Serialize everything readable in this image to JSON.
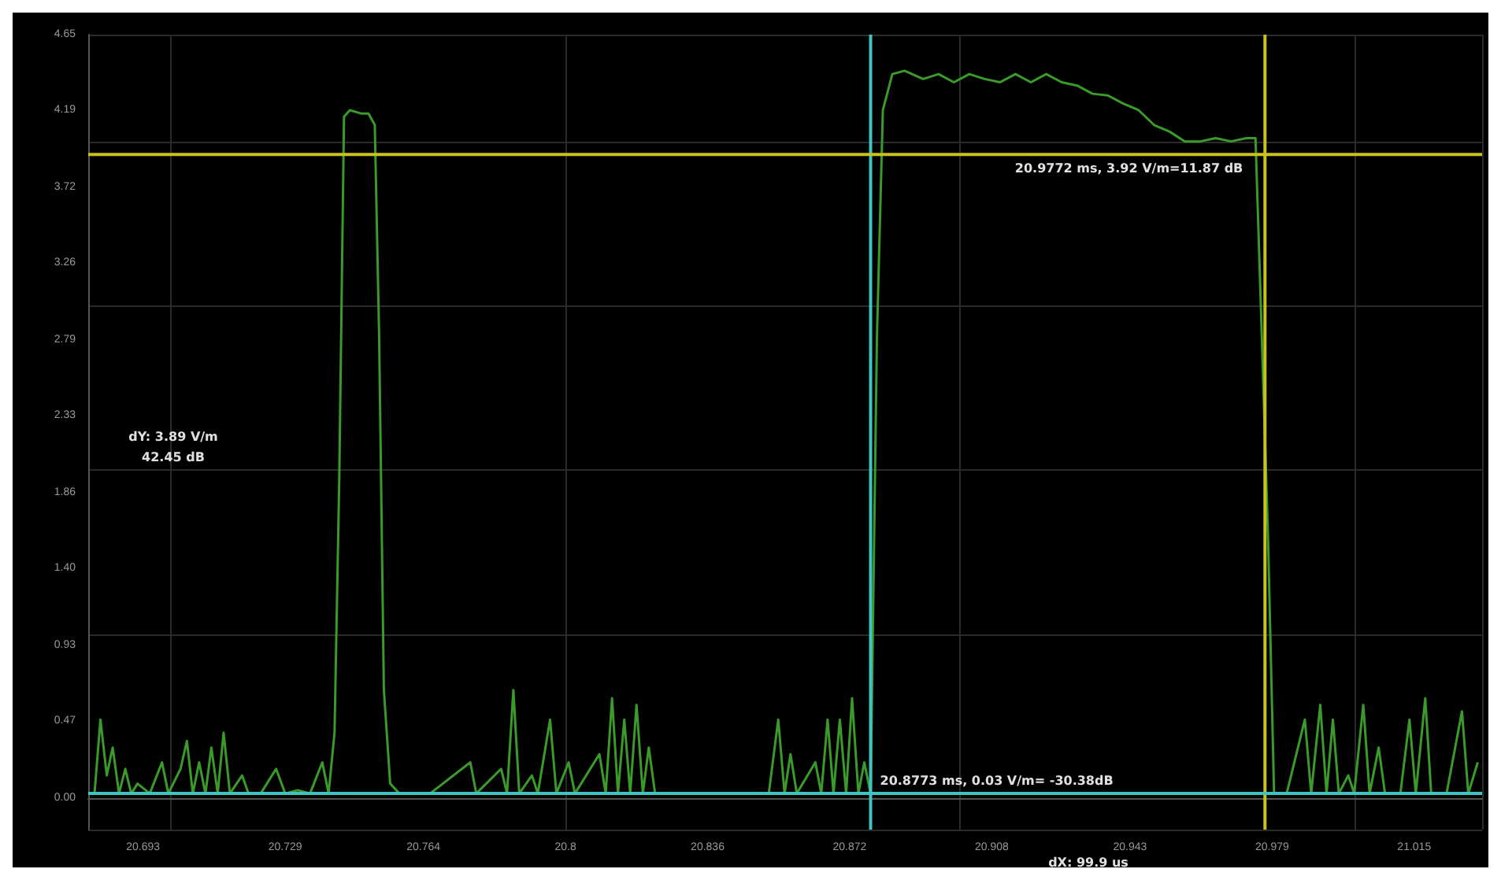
{
  "chart_data": {
    "type": "line",
    "x": [
      20.6807,
      20.6822,
      20.6838,
      20.6853,
      20.6869,
      20.6885,
      20.69,
      20.6916,
      20.6947,
      20.6978,
      20.6994,
      20.7025,
      20.7041,
      20.7056,
      20.7072,
      20.7088,
      20.7103,
      20.7119,
      20.7134,
      20.715,
      20.7181,
      20.7197,
      20.7228,
      20.7267,
      20.729,
      20.7322,
      20.7353,
      20.7384,
      20.74,
      20.7415,
      20.7427,
      20.7439,
      20.7454,
      20.7482,
      20.7501,
      20.7517,
      20.7528,
      20.754,
      20.7556,
      20.7579,
      20.7657,
      20.7759,
      20.7774,
      20.7837,
      20.7852,
      20.7868,
      20.7883,
      20.7915,
      20.793,
      20.7961,
      20.7977,
      20.8008,
      20.8024,
      20.8086,
      20.8102,
      20.8118,
      20.8133,
      20.8149,
      20.8164,
      20.818,
      20.8196,
      20.8211,
      20.8227,
      20.832,
      20.8515,
      20.8539,
      20.8555,
      20.857,
      20.8586,
      20.8633,
      20.8648,
      20.8664,
      20.8679,
      20.8695,
      20.8711,
      20.8726,
      20.8742,
      20.8757,
      20.8773,
      20.8789,
      20.8804,
      20.8828,
      20.8859,
      20.8906,
      20.8945,
      20.8984,
      20.9023,
      20.9062,
      20.9101,
      20.914,
      20.9179,
      20.9218,
      20.9257,
      20.9296,
      20.9335,
      20.9374,
      20.9413,
      20.9452,
      20.9491,
      20.953,
      20.9569,
      20.9608,
      20.9647,
      20.9686,
      20.9725,
      20.9748,
      20.9764,
      20.978,
      20.9795,
      20.9827,
      20.9873,
      20.9889,
      20.9912,
      20.9928,
      20.9944,
      20.9959,
      20.9983,
      20.9998,
      21.0021,
      21.0037,
      21.006,
      21.0076,
      21.0115,
      21.0138,
      21.0154,
      21.0178,
      21.0193,
      21.0232,
      21.0271,
      21.0287,
      21.0311
    ],
    "series": [
      {
        "color": "#3a9a2a",
        "values": [
          0.03,
          0.48,
          0.14,
          0.31,
          0.03,
          0.18,
          0.03,
          0.09,
          0.03,
          0.22,
          0.03,
          0.18,
          0.35,
          0.03,
          0.22,
          0.03,
          0.31,
          0.03,
          0.4,
          0.03,
          0.14,
          0.03,
          0.03,
          0.18,
          0.03,
          0.05,
          0.03,
          0.22,
          0.03,
          0.4,
          1.95,
          4.15,
          4.19,
          4.17,
          4.17,
          4.1,
          2.81,
          0.66,
          0.09,
          0.03,
          0.03,
          0.22,
          0.03,
          0.18,
          0.03,
          0.66,
          0.03,
          0.14,
          0.03,
          0.48,
          0.03,
          0.22,
          0.03,
          0.27,
          0.03,
          0.61,
          0.03,
          0.48,
          0.03,
          0.57,
          0.03,
          0.31,
          0.03,
          0.03,
          0.03,
          0.48,
          0.03,
          0.27,
          0.03,
          0.22,
          0.03,
          0.48,
          0.03,
          0.48,
          0.03,
          0.61,
          0.03,
          0.22,
          0.03,
          2.81,
          4.19,
          4.41,
          4.43,
          4.38,
          4.41,
          4.36,
          4.41,
          4.38,
          4.36,
          4.41,
          4.36,
          4.41,
          4.36,
          4.34,
          4.29,
          4.28,
          4.23,
          4.19,
          4.1,
          4.06,
          4.0,
          4.0,
          4.02,
          4.0,
          4.02,
          4.02,
          2.81,
          1.56,
          0.03,
          0.03,
          0.48,
          0.03,
          0.57,
          0.03,
          0.48,
          0.03,
          0.14,
          0.03,
          0.57,
          0.03,
          0.31,
          0.03,
          0.03,
          0.48,
          0.03,
          0.61,
          0.03,
          0.03,
          0.53,
          0.03,
          0.22
        ]
      }
    ],
    "xlim": [
      20.6791,
      21.0322
    ],
    "xticks": [
      20.693,
      20.729,
      20.764,
      20.8,
      20.836,
      20.872,
      20.908,
      20.943,
      20.979,
      21.015
    ],
    "ylim": [
      -0.19,
      4.65
    ],
    "yticks": [
      {
        "value": 0,
        "label": "0.00"
      },
      0.47,
      0.93,
      {
        "value": 1.4,
        "label": "1.40"
      },
      1.86,
      2.33,
      2.79,
      3.26,
      3.72,
      4.19,
      4.65
    ],
    "grid": true,
    "marker": "none",
    "line_style": "solid",
    "ref_lines": [
      {
        "axis": "x",
        "value": 20.8773,
        "color": "#3fc4c4"
      },
      {
        "axis": "x",
        "value": 20.9772,
        "color": "#c8c21e"
      },
      {
        "axis": "y",
        "value": 3.92,
        "color": "#c8c21e"
      },
      {
        "axis": "y",
        "value": 0.03,
        "color": "#3fc4c4"
      }
    ],
    "annotations": [
      {
        "text": "20.9772 ms, 3.92 V/m=11.87 dB",
        "x": 20.9772,
        "y": 3.92
      },
      {
        "text": "20.8773 ms, 0.03 V/m= -30.38dB",
        "x": 20.8773,
        "y": 0.03
      },
      "dY: 3.89 V/m\n42.45 dB",
      "dX: 99.9 us"
    ]
  }
}
